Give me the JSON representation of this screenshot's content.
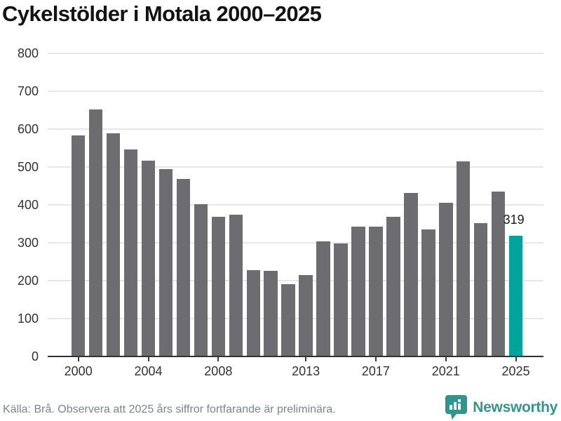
{
  "title": "Cykelstölder i Motala 2000–2025",
  "chart_data": {
    "type": "bar",
    "title": "Cykelstölder i Motala 2000–2025",
    "x": [
      2000,
      2001,
      2002,
      2003,
      2004,
      2005,
      2006,
      2007,
      2008,
      2009,
      2010,
      2011,
      2012,
      2013,
      2014,
      2015,
      2016,
      2017,
      2018,
      2019,
      2020,
      2021,
      2022,
      2023,
      2024,
      2025
    ],
    "values": [
      583,
      652,
      588,
      546,
      516,
      494,
      468,
      402,
      369,
      374,
      228,
      226,
      191,
      214,
      303,
      299,
      342,
      343,
      368,
      431,
      335,
      406,
      515,
      351,
      436,
      319
    ],
    "highlight": {
      "year": 2025,
      "label": "319"
    },
    "ylim": [
      0,
      800
    ],
    "yticks": [
      0,
      100,
      200,
      300,
      400,
      500,
      600,
      700,
      800
    ],
    "xticks": [
      2000,
      2004,
      2008,
      2013,
      2017,
      2021,
      2025
    ],
    "grid": "horizontal",
    "legend": "none",
    "colors": {
      "bar": "#6d6c71",
      "highlight": "#02a39b",
      "gridline": "#e7e7e7",
      "axis": "#323232",
      "tick_label": "#333333"
    }
  },
  "footer": {
    "source_note": "Källa: Brå. Observera att 2025 års siffror fortfarande är preliminära.",
    "brand": "Newsworthy",
    "brand_color": "#35948d",
    "icon_color": "#2f968e"
  }
}
